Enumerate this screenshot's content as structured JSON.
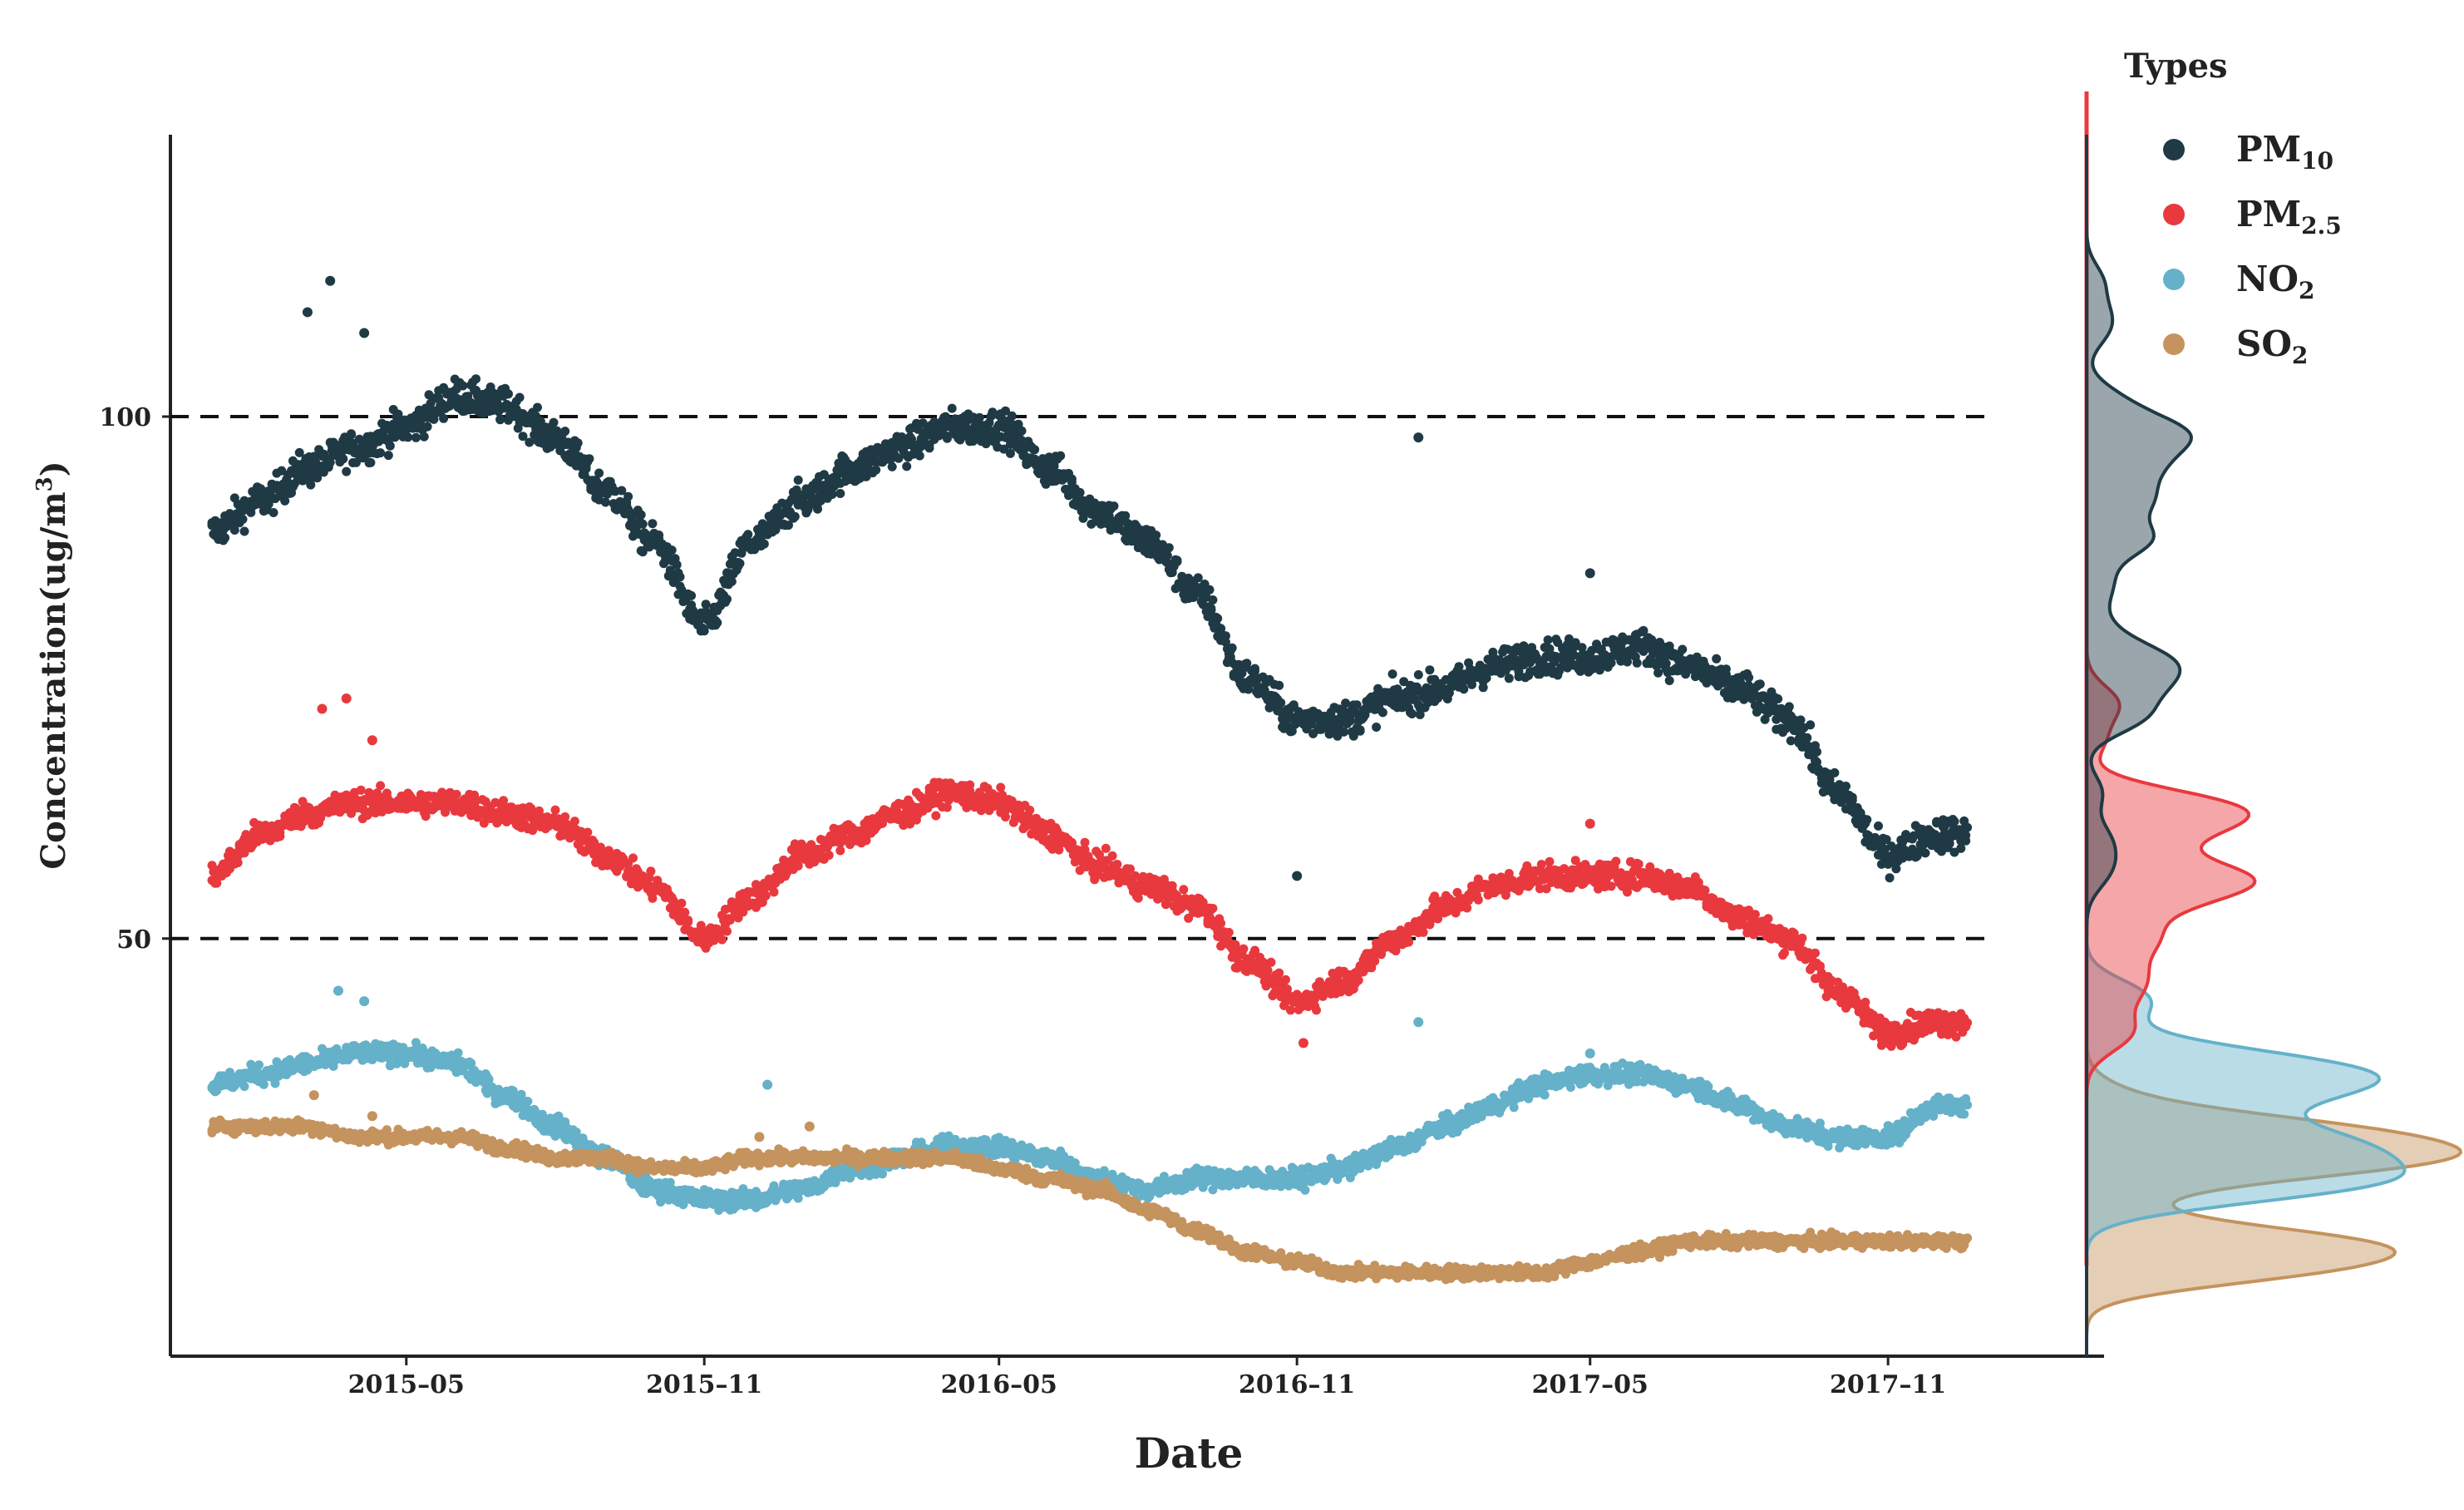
{
  "chart_data": {
    "type": "scatter",
    "title": "",
    "xlabel": "Date",
    "ylabel": "Concentration(ug/m³)",
    "ylabel_parts": {
      "main": "Concentration(ug/m",
      "sup": "3",
      "end": ")"
    },
    "x_range": [
      "2015-01-01",
      "2018-01-01"
    ],
    "ylim": [
      10,
      127
    ],
    "x_ticks": [
      {
        "date": "2015-05-01",
        "label": "2015–05"
      },
      {
        "date": "2015-11-01",
        "label": "2015–11"
      },
      {
        "date": "2016-05-01",
        "label": "2016–05"
      },
      {
        "date": "2016-11-01",
        "label": "2016–11"
      },
      {
        "date": "2017-05-01",
        "label": "2017–05"
      },
      {
        "date": "2017-11-01",
        "label": "2017–11"
      }
    ],
    "y_ticks": [
      50,
      100
    ],
    "reference_lines": [
      50,
      100
    ],
    "legend": {
      "title": "Types",
      "position": "right"
    },
    "series": [
      {
        "name": "PM10",
        "label_main": "PM",
        "label_sub": "10",
        "color": "#1f3a44",
        "points": [
          [
            "2015-01-01",
            89
          ],
          [
            "2015-02-01",
            92
          ],
          [
            "2015-03-01",
            95
          ],
          [
            "2015-04-01",
            97
          ],
          [
            "2015-05-01",
            99
          ],
          [
            "2015-06-01",
            102
          ],
          [
            "2015-07-01",
            101
          ],
          [
            "2015-08-01",
            98
          ],
          [
            "2015-09-01",
            93
          ],
          [
            "2015-10-01",
            88
          ],
          [
            "2015-11-01",
            80
          ],
          [
            "2015-12-01",
            88
          ],
          [
            "2016-01-01",
            92
          ],
          [
            "2016-02-01",
            95
          ],
          [
            "2016-03-01",
            97
          ],
          [
            "2016-04-01",
            99
          ],
          [
            "2016-05-01",
            99
          ],
          [
            "2016-06-01",
            95
          ],
          [
            "2016-07-01",
            91
          ],
          [
            "2016-08-01",
            88
          ],
          [
            "2016-09-01",
            83
          ],
          [
            "2016-10-01",
            75
          ],
          [
            "2016-11-01",
            71
          ],
          [
            "2016-12-01",
            71
          ],
          [
            "2017-01-01",
            73
          ],
          [
            "2017-02-01",
            74
          ],
          [
            "2017-03-01",
            76
          ],
          [
            "2017-04-01",
            77
          ],
          [
            "2017-05-01",
            77
          ],
          [
            "2017-06-01",
            78
          ],
          [
            "2017-07-01",
            76
          ],
          [
            "2017-08-01",
            74
          ],
          [
            "2017-09-01",
            71
          ],
          [
            "2017-10-01",
            64
          ],
          [
            "2017-11-01",
            58
          ],
          [
            "2017-12-01",
            60
          ]
        ],
        "outliers": [
          [
            "2015-03-01",
            110
          ],
          [
            "2015-03-15",
            113
          ],
          [
            "2015-04-05",
            108
          ],
          [
            "2017-01-15",
            98
          ],
          [
            "2017-05-01",
            85
          ],
          [
            "2016-11-01",
            56
          ]
        ]
      },
      {
        "name": "PM2.5",
        "label_main": "PM",
        "label_sub": "2.5",
        "color": "#e8393f",
        "points": [
          [
            "2015-01-01",
            56
          ],
          [
            "2015-02-01",
            60
          ],
          [
            "2015-03-01",
            62
          ],
          [
            "2015-04-01",
            63
          ],
          [
            "2015-05-01",
            63
          ],
          [
            "2015-06-01",
            63
          ],
          [
            "2015-07-01",
            62
          ],
          [
            "2015-08-01",
            61
          ],
          [
            "2015-09-01",
            58
          ],
          [
            "2015-10-01",
            55
          ],
          [
            "2015-11-01",
            50
          ],
          [
            "2015-12-01",
            54
          ],
          [
            "2016-01-01",
            58
          ],
          [
            "2016-02-01",
            60
          ],
          [
            "2016-03-01",
            62
          ],
          [
            "2016-04-01",
            64
          ],
          [
            "2016-05-01",
            63
          ],
          [
            "2016-06-01",
            60
          ],
          [
            "2016-07-01",
            57
          ],
          [
            "2016-08-01",
            55
          ],
          [
            "2016-09-01",
            53
          ],
          [
            "2016-10-01",
            48
          ],
          [
            "2016-11-01",
            44
          ],
          [
            "2016-12-01",
            46
          ],
          [
            "2017-01-01",
            50
          ],
          [
            "2017-02-01",
            53
          ],
          [
            "2017-03-01",
            55
          ],
          [
            "2017-04-01",
            56
          ],
          [
            "2017-05-01",
            56
          ],
          [
            "2017-06-01",
            56
          ],
          [
            "2017-07-01",
            55
          ],
          [
            "2017-08-01",
            52
          ],
          [
            "2017-09-01",
            50
          ],
          [
            "2017-10-01",
            45
          ],
          [
            "2017-11-01",
            41
          ],
          [
            "2017-12-01",
            42
          ]
        ],
        "outliers": [
          [
            "2015-03-10",
            72
          ],
          [
            "2015-03-25",
            73
          ],
          [
            "2015-04-10",
            69
          ],
          [
            "2016-10-05",
            47
          ],
          [
            "2016-11-05",
            40
          ],
          [
            "2017-05-01",
            61
          ]
        ]
      },
      {
        "name": "NO2",
        "label_main": "NO",
        "label_sub": "2",
        "color": "#65b1c9",
        "points": [
          [
            "2015-01-01",
            36
          ],
          [
            "2015-02-01",
            37
          ],
          [
            "2015-03-01",
            38
          ],
          [
            "2015-04-01",
            39
          ],
          [
            "2015-05-01",
            39
          ],
          [
            "2015-06-01",
            38
          ],
          [
            "2015-07-01",
            35
          ],
          [
            "2015-08-01",
            32
          ],
          [
            "2015-09-01",
            29
          ],
          [
            "2015-10-01",
            26
          ],
          [
            "2015-11-01",
            25
          ],
          [
            "2015-12-01",
            25
          ],
          [
            "2016-01-01",
            26
          ],
          [
            "2016-02-01",
            28
          ],
          [
            "2016-03-01",
            29
          ],
          [
            "2016-04-01",
            30
          ],
          [
            "2016-05-01",
            30
          ],
          [
            "2016-06-01",
            29
          ],
          [
            "2016-07-01",
            27
          ],
          [
            "2016-08-01",
            26
          ],
          [
            "2016-09-01",
            27
          ],
          [
            "2016-10-01",
            27
          ],
          [
            "2016-11-01",
            27
          ],
          [
            "2016-12-01",
            28
          ],
          [
            "2017-01-01",
            30
          ],
          [
            "2017-02-01",
            32
          ],
          [
            "2017-03-01",
            34
          ],
          [
            "2017-04-01",
            36
          ],
          [
            "2017-05-01",
            37
          ],
          [
            "2017-06-01",
            37
          ],
          [
            "2017-07-01",
            36
          ],
          [
            "2017-08-01",
            34
          ],
          [
            "2017-09-01",
            32
          ],
          [
            "2017-10-01",
            31
          ],
          [
            "2017-11-01",
            31
          ],
          [
            "2017-12-01",
            34
          ]
        ],
        "outliers": [
          [
            "2015-03-20",
            45
          ],
          [
            "2015-04-05",
            44
          ],
          [
            "2015-12-10",
            36
          ],
          [
            "2017-01-15",
            42
          ],
          [
            "2017-05-01",
            39
          ]
        ]
      },
      {
        "name": "SO2",
        "label_main": "SO",
        "label_sub": "2",
        "color": "#c4935e",
        "points": [
          [
            "2015-01-01",
            32
          ],
          [
            "2015-02-01",
            32
          ],
          [
            "2015-03-01",
            32
          ],
          [
            "2015-04-01",
            31
          ],
          [
            "2015-05-01",
            31
          ],
          [
            "2015-06-01",
            31
          ],
          [
            "2015-07-01",
            30
          ],
          [
            "2015-08-01",
            29
          ],
          [
            "2015-09-01",
            29
          ],
          [
            "2015-10-01",
            28
          ],
          [
            "2015-11-01",
            28
          ],
          [
            "2015-12-01",
            29
          ],
          [
            "2016-01-01",
            29
          ],
          [
            "2016-02-01",
            29
          ],
          [
            "2016-03-01",
            29
          ],
          [
            "2016-04-01",
            29
          ],
          [
            "2016-05-01",
            28
          ],
          [
            "2016-06-01",
            27
          ],
          [
            "2016-07-01",
            26
          ],
          [
            "2016-08-01",
            24
          ],
          [
            "2016-09-01",
            22
          ],
          [
            "2016-10-01",
            20
          ],
          [
            "2016-11-01",
            19
          ],
          [
            "2016-12-01",
            18
          ],
          [
            "2017-01-01",
            18
          ],
          [
            "2017-02-01",
            18
          ],
          [
            "2017-03-01",
            18
          ],
          [
            "2017-04-01",
            18
          ],
          [
            "2017-05-01",
            19
          ],
          [
            "2017-06-01",
            20
          ],
          [
            "2017-07-01",
            21
          ],
          [
            "2017-08-01",
            21
          ],
          [
            "2017-09-01",
            21
          ],
          [
            "2017-10-01",
            21
          ],
          [
            "2017-11-01",
            21
          ],
          [
            "2017-12-01",
            21
          ]
        ],
        "outliers": [
          [
            "2015-03-05",
            35
          ],
          [
            "2015-04-10",
            33
          ],
          [
            "2015-12-05",
            31
          ],
          [
            "2016-01-05",
            32
          ]
        ]
      }
    ]
  }
}
